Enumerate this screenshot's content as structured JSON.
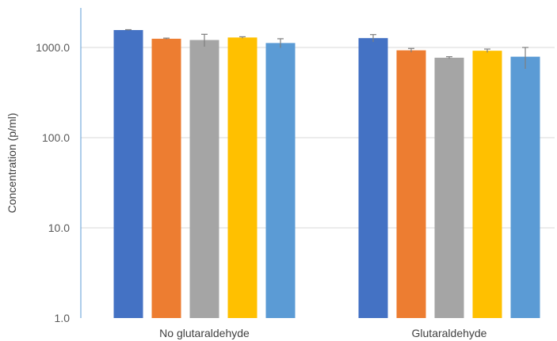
{
  "chart_data": {
    "type": "bar",
    "ylabel": "Concentration (p/ml)",
    "yscale": "log",
    "ylim": [
      1,
      2000
    ],
    "yticks": [
      {
        "value": 1,
        "label": "1.0"
      },
      {
        "value": 10,
        "label": "10.0"
      },
      {
        "value": 100,
        "label": "100.0"
      },
      {
        "value": 1000,
        "label": "1000.0"
      }
    ],
    "grid": true,
    "categories": [
      "No glutaraldehyde",
      "Glutaraldehyde"
    ],
    "series": [
      {
        "color": "#4472c4",
        "values": [
          1560,
          1270
        ],
        "errors": [
          15,
          120
        ]
      },
      {
        "color": "#ed7d31",
        "values": [
          1250,
          930
        ],
        "errors": [
          20,
          45
        ]
      },
      {
        "color": "#a5a5a5",
        "values": [
          1210,
          770
        ],
        "errors": [
          190,
          20
        ]
      },
      {
        "color": "#ffc000",
        "values": [
          1290,
          920
        ],
        "errors": [
          25,
          40
        ]
      },
      {
        "color": "#5b9bd5",
        "values": [
          1120,
          790
        ],
        "errors": [
          130,
          210
        ]
      }
    ]
  }
}
